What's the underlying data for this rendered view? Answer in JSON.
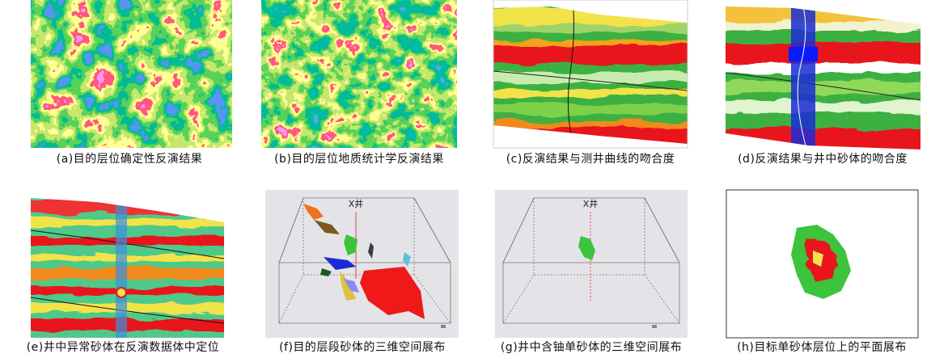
{
  "panels": [
    {
      "caption": "(a)目的层位确定性反演结果"
    },
    {
      "caption": "(b)目的层位地质统计学反演结果"
    },
    {
      "caption": "(c)反演结果与测井曲线的吻合度"
    },
    {
      "caption": "(d)反演结果与井中砂体的吻合度"
    },
    {
      "caption": "(e)井中异常砂体在反演数据体中定位"
    },
    {
      "caption": "(f)目的层段砂体的三维空间展布",
      "well_label": "X井"
    },
    {
      "caption": "(g)井中含铀单砂体的三维空间展布",
      "well_label": "X井"
    },
    {
      "caption": "(h)目标单砂体层位上的平面展布"
    }
  ]
}
